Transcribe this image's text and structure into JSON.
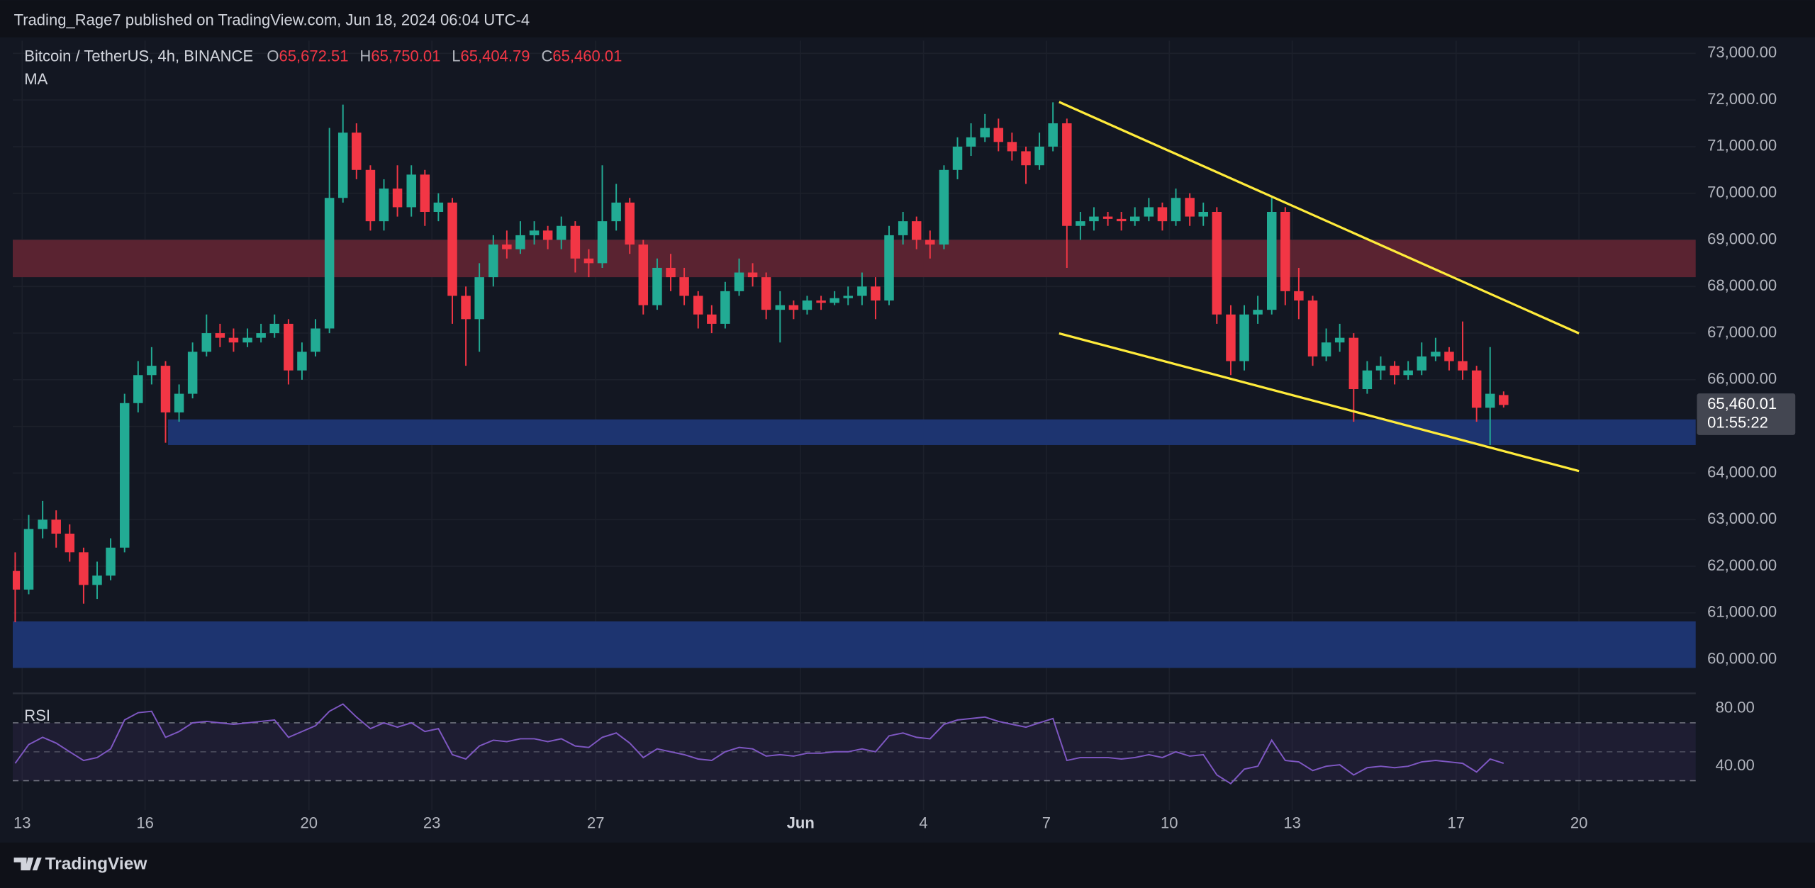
{
  "header": {
    "publisher": "Trading_Rage7 published on TradingView.com, Jun 18, 2024 06:04 UTC-4",
    "symbol": "Bitcoin / TetherUS, 4h, BINANCE",
    "ohlc": [
      {
        "key": "O",
        "value": "65,672.51"
      },
      {
        "key": "H",
        "value": "65,750.01"
      },
      {
        "key": "L",
        "value": "65,404.79"
      },
      {
        "key": "C",
        "value": "65,460.01"
      }
    ],
    "indicator": "MA"
  },
  "chart_data": [
    {
      "type": "candlestick",
      "up_color": "#22ab94",
      "down_color": "#f23645",
      "grid": true,
      "xlim": [
        -0.23,
        40.85
      ],
      "ylim": [
        59300,
        73270
      ],
      "xticks": [
        {
          "value": 0,
          "label": "13"
        },
        {
          "value": 3,
          "label": "16"
        },
        {
          "value": 7,
          "label": "20"
        },
        {
          "value": 10,
          "label": "23"
        },
        {
          "value": 14,
          "label": "27"
        },
        {
          "value": 19,
          "label": "Jun"
        },
        {
          "value": 22,
          "label": "4"
        },
        {
          "value": 25,
          "label": "7"
        },
        {
          "value": 28,
          "label": "10"
        },
        {
          "value": 31,
          "label": "13"
        },
        {
          "value": 35,
          "label": "17"
        },
        {
          "value": 38,
          "label": "20"
        }
      ],
      "yticks": [
        {
          "value": 60000,
          "label": "60,000.00"
        },
        {
          "value": 61000,
          "label": "61,000.00"
        },
        {
          "value": 62000,
          "label": "62,000.00"
        },
        {
          "value": 63000,
          "label": "63,000.00"
        },
        {
          "value": 64000,
          "label": "64,000.00"
        },
        {
          "value": 65000,
          "label": "65,000.00"
        },
        {
          "value": 66000,
          "label": "66,000.00"
        },
        {
          "value": 67000,
          "label": "67,000.00"
        },
        {
          "value": 68000,
          "label": "68,000.00"
        },
        {
          "value": 69000,
          "label": "69,000.00"
        },
        {
          "value": 70000,
          "label": "70,000.00"
        },
        {
          "value": 71000,
          "label": "71,000.00"
        },
        {
          "value": 72000,
          "label": "72,000.00"
        },
        {
          "value": 73000,
          "label": "73,000.00"
        }
      ],
      "x": [
        -0.17,
        0.16,
        0.5,
        0.83,
        1.16,
        1.5,
        1.83,
        2.16,
        2.5,
        2.83,
        3.16,
        3.5,
        3.83,
        4.16,
        4.5,
        4.83,
        5.16,
        5.5,
        5.83,
        6.16,
        6.5,
        6.83,
        7.16,
        7.5,
        7.83,
        8.16,
        8.5,
        8.83,
        9.16,
        9.5,
        9.83,
        10.16,
        10.5,
        10.83,
        11.16,
        11.5,
        11.83,
        12.16,
        12.5,
        12.83,
        13.16,
        13.5,
        13.83,
        14.16,
        14.5,
        14.83,
        15.16,
        15.5,
        15.83,
        16.16,
        16.5,
        16.83,
        17.16,
        17.5,
        17.83,
        18.16,
        18.5,
        18.83,
        19.16,
        19.5,
        19.83,
        20.16,
        20.5,
        20.83,
        21.16,
        21.5,
        21.83,
        22.16,
        22.5,
        22.83,
        23.16,
        23.5,
        23.83,
        24.16,
        24.5,
        24.83,
        25.16,
        25.5,
        25.83,
        26.16,
        26.5,
        26.83,
        27.16,
        27.5,
        27.83,
        28.16,
        28.5,
        28.83,
        29.16,
        29.5,
        29.83,
        30.16,
        30.5,
        30.83,
        31.16,
        31.5,
        31.83,
        32.16,
        32.5,
        32.83,
        33.16,
        33.5,
        33.83,
        34.16,
        34.5,
        34.83,
        35.16,
        35.5,
        35.83,
        36.16
      ],
      "open": [
        61900,
        61500,
        62800,
        63000,
        62700,
        62300,
        61600,
        61800,
        62400,
        65500,
        66100,
        66300,
        65300,
        65700,
        66600,
        67000,
        66900,
        66800,
        66900,
        67000,
        67200,
        66200,
        66600,
        67100,
        69900,
        71300,
        70500,
        69400,
        70100,
        69700,
        70400,
        69600,
        69800,
        67800,
        67300,
        68200,
        68900,
        68800,
        69100,
        69200,
        69000,
        69300,
        68600,
        68500,
        69400,
        69800,
        68900,
        67600,
        68400,
        68200,
        67800,
        67400,
        67200,
        67900,
        68300,
        68200,
        67500,
        67600,
        67500,
        67700,
        67650,
        67750,
        67800,
        68000,
        67700,
        69100,
        69400,
        69000,
        68900,
        70500,
        71000,
        71200,
        71400,
        71100,
        70900,
        70600,
        71000,
        71500,
        69300,
        69400,
        69500,
        69450,
        69400,
        69500,
        69700,
        69400,
        69900,
        69500,
        69600,
        67400,
        66400,
        67400,
        67500,
        69600,
        67900,
        67700,
        66500,
        66800,
        66900,
        65800,
        66200,
        66300,
        66100,
        66200,
        66500,
        66600,
        66400,
        66200,
        65400,
        65672.51
      ],
      "high": [
        62300,
        63100,
        63400,
        63200,
        62900,
        62400,
        62100,
        62600,
        65700,
        66400,
        66700,
        66400,
        65900,
        66800,
        67400,
        67200,
        67100,
        67100,
        67200,
        67400,
        67300,
        66800,
        67300,
        71400,
        71900,
        71500,
        70600,
        70300,
        70600,
        70600,
        70500,
        70000,
        69900,
        68000,
        68500,
        69100,
        69200,
        69400,
        69400,
        69300,
        69500,
        69400,
        68800,
        70600,
        70200,
        69900,
        69000,
        68600,
        68700,
        68400,
        67900,
        67600,
        68100,
        68600,
        68500,
        68300,
        67900,
        67700,
        67800,
        67800,
        67900,
        68000,
        68300,
        68200,
        69300,
        69600,
        69500,
        69200,
        70600,
        71200,
        71500,
        71700,
        71600,
        71300,
        71000,
        71300,
        71950,
        71600,
        69600,
        69700,
        69600,
        69600,
        69700,
        69900,
        69800,
        70100,
        70000,
        69800,
        69700,
        67600,
        67600,
        67800,
        69900,
        69700,
        68400,
        67800,
        67100,
        67200,
        67000,
        66400,
        66500,
        66400,
        66400,
        66800,
        66900,
        66700,
        67250,
        66300,
        66700,
        65750.01
      ],
      "low": [
        60800,
        61400,
        62600,
        62400,
        62100,
        61200,
        61300,
        61700,
        62300,
        65300,
        65900,
        64650,
        65100,
        65600,
        66500,
        66700,
        66600,
        66700,
        66800,
        66900,
        65900,
        66000,
        66500,
        67000,
        69800,
        70300,
        69200,
        69200,
        69500,
        69500,
        69300,
        69400,
        67200,
        66300,
        66600,
        68000,
        68600,
        68700,
        68900,
        68800,
        68800,
        68300,
        68200,
        68400,
        69200,
        68700,
        67400,
        67500,
        67900,
        67600,
        67100,
        67000,
        67100,
        67800,
        68000,
        67300,
        66800,
        67300,
        67400,
        67500,
        67600,
        67600,
        67600,
        67300,
        67600,
        68900,
        68800,
        68600,
        68800,
        70300,
        70800,
        71100,
        70900,
        70700,
        70200,
        70500,
        70900,
        68400,
        69000,
        69200,
        69300,
        69200,
        69300,
        69400,
        69200,
        69300,
        69300,
        69300,
        67200,
        66100,
        66200,
        67200,
        67400,
        67600,
        67300,
        66300,
        66400,
        66600,
        65100,
        65700,
        66000,
        65900,
        66000,
        66100,
        66400,
        66200,
        66000,
        65100,
        64600,
        65404.79
      ],
      "close": [
        61500,
        62800,
        63000,
        62700,
        62300,
        61600,
        61800,
        62400,
        65500,
        66100,
        66300,
        65300,
        65700,
        66600,
        67000,
        66900,
        66800,
        66900,
        67000,
        67200,
        66200,
        66600,
        67100,
        69900,
        71300,
        70500,
        69400,
        70100,
        69700,
        70400,
        69600,
        69800,
        67800,
        67300,
        68200,
        68900,
        68800,
        69100,
        69200,
        69000,
        69300,
        68600,
        68500,
        69400,
        69800,
        68900,
        67600,
        68400,
        68200,
        67800,
        67400,
        67200,
        67900,
        68300,
        68200,
        67500,
        67600,
        67500,
        67700,
        67650,
        67750,
        67800,
        68000,
        67700,
        69100,
        69400,
        69000,
        68900,
        70500,
        71000,
        71200,
        71400,
        71100,
        70900,
        70600,
        71000,
        71500,
        69300,
        69400,
        69500,
        69450,
        69400,
        69500,
        69700,
        69400,
        69900,
        69500,
        69600,
        67400,
        66400,
        67400,
        67500,
        69600,
        67900,
        67700,
        66500,
        66800,
        66900,
        65800,
        66200,
        66300,
        66100,
        66200,
        66500,
        66600,
        66400,
        66200,
        65400,
        65700,
        65460.01
      ],
      "zones": [
        {
          "range": [
            68200,
            69000
          ],
          "color": "#5a2331"
        },
        {
          "range": [
            64600,
            65150
          ],
          "x_start": 3.56,
          "color": "#1d3470"
        },
        {
          "range": [
            59820,
            60820
          ],
          "color": "#1d3470"
        }
      ],
      "trendlines": [
        {
          "x": [
            25.31,
            38
          ],
          "y": [
            71958,
            66995
          ],
          "color": "#ffeb3b"
        },
        {
          "x": [
            25.31,
            38
          ],
          "y": [
            66995,
            64042
          ],
          "color": "#ffeb3b"
        }
      ],
      "last_price": {
        "value": 65460.01,
        "label": "65,460.01",
        "countdown": "01:55:22"
      }
    },
    {
      "type": "line",
      "title": "RSI",
      "color": "#7e57c2",
      "ylim": [
        9.6,
        89.6
      ],
      "yticks": [
        {
          "value": 80,
          "label": "80.00"
        },
        {
          "value": 40,
          "label": "40.00"
        }
      ],
      "levels": [
        70,
        50,
        30
      ],
      "values": [
        42,
        55,
        60,
        56,
        50,
        44,
        46,
        52,
        72,
        77,
        78,
        60,
        64,
        70,
        71,
        70,
        69,
        70,
        71,
        72,
        60,
        64,
        68,
        78,
        83,
        74,
        66,
        70,
        67,
        70,
        64,
        66,
        48,
        45,
        54,
        58,
        57,
        59,
        59,
        57,
        59,
        54,
        53,
        60,
        63,
        56,
        46,
        52,
        50,
        48,
        45,
        44,
        50,
        53,
        52,
        47,
        48,
        47,
        49,
        49,
        50,
        50,
        52,
        50,
        61,
        63,
        60,
        59,
        69,
        72,
        73,
        74,
        71,
        69,
        67,
        70,
        73,
        44,
        46,
        46,
        46,
        45,
        46,
        48,
        46,
        50,
        47,
        48,
        34,
        28,
        38,
        40,
        58,
        44,
        43,
        37,
        40,
        41,
        34,
        39,
        40,
        39,
        40,
        43,
        44,
        43,
        42,
        36,
        45,
        42
      ]
    }
  ],
  "footer": {
    "brand": "TradingView"
  }
}
